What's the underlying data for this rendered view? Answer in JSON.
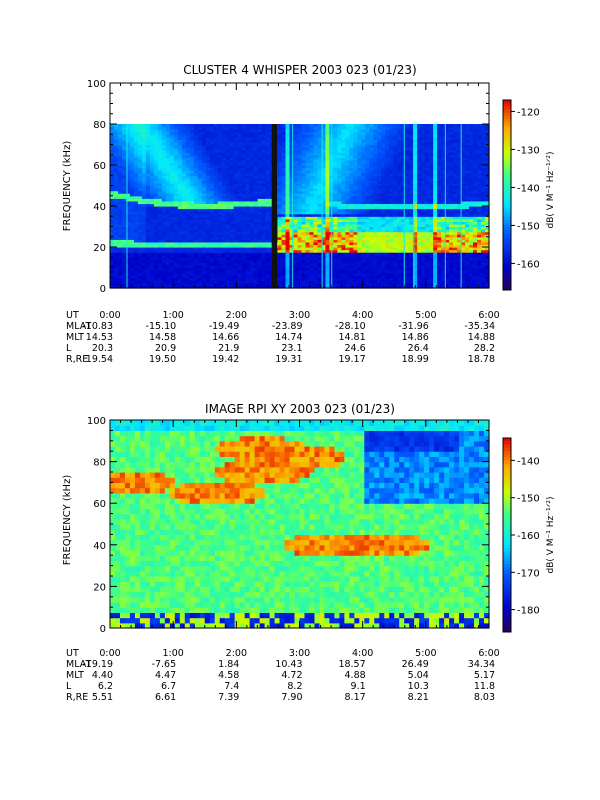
{
  "chart_data": [
    {
      "type": "heatmap",
      "title": "CLUSTER 4 WHISPER 2003 023 (01/23)",
      "ylabel": "FREQUENCY (kHz)",
      "ylim": [
        0,
        100
      ],
      "yticks": [
        "0",
        "20",
        "40",
        "60",
        "80",
        "100"
      ],
      "data_ymax": 80,
      "colorbar": {
        "label": "dB( V M⁻¹ Hz⁻¹ᐟ²)",
        "range": [
          -167,
          -117
        ],
        "ticks": [
          "-120",
          "-130",
          "-140",
          "-150",
          "-160"
        ]
      },
      "features": {
        "line1": [
          [
            0,
            46
          ],
          [
            0.5,
            43
          ],
          [
            1,
            41
          ],
          [
            1.5,
            40
          ],
          [
            2,
            41
          ],
          [
            2.5,
            42
          ]
        ],
        "line2": [
          [
            0,
            22
          ],
          [
            1,
            21
          ],
          [
            2,
            21
          ],
          [
            3,
            21
          ],
          [
            4,
            21
          ],
          [
            5,
            21
          ],
          [
            6,
            20
          ]
        ],
        "upper_line": [
          [
            3.4,
            41
          ],
          [
            4,
            40
          ],
          [
            5,
            40
          ],
          [
            6,
            41
          ]
        ]
      },
      "ephemeris": {
        "labels": [
          "UT",
          "MLAT",
          "MLT",
          "L",
          "R,RE"
        ],
        "rows": [
          [
            "0:00",
            "1:00",
            "2:00",
            "3:00",
            "4:00",
            "5:00",
            "6:00"
          ],
          [
            "-10.83",
            "-15.10",
            "-19.49",
            "-23.89",
            "-28.10",
            "-31.96",
            "-35.34"
          ],
          [
            "14.53",
            "14.58",
            "14.66",
            "14.74",
            "14.81",
            "14.86",
            "14.88"
          ],
          [
            "20.3",
            "20.9",
            "21.9",
            "23.1",
            "24.6",
            "26.4",
            "28.2"
          ],
          [
            "19.54",
            "19.50",
            "19.42",
            "19.31",
            "19.17",
            "18.99",
            "18.78"
          ]
        ]
      }
    },
    {
      "type": "heatmap",
      "title": "IMAGE RPI XY 2003 023 (01/23)",
      "ylabel": "FREQUENCY (kHz)",
      "ylim": [
        0,
        100
      ],
      "yticks": [
        "0",
        "20",
        "40",
        "60",
        "80",
        "100"
      ],
      "data_ymax": 100,
      "colorbar": {
        "label": "dB( V M⁻¹ Hz⁻¹ᐟ²)",
        "range": [
          -186,
          -134
        ],
        "ticks": [
          "-140",
          "-150",
          "-160",
          "-170",
          "-180"
        ]
      },
      "features": {
        "hot_spots": [
          [
            0.3,
            70
          ],
          [
            2.4,
            86
          ],
          [
            2.4,
            75
          ],
          [
            3,
            82
          ],
          [
            1.7,
            65
          ],
          [
            3.5,
            40
          ],
          [
            4.3,
            40
          ]
        ],
        "quiet_region": [
          [
            4.0,
            100
          ],
          [
            6.0,
            60
          ]
        ]
      },
      "ephemeris": {
        "labels": [
          "UT",
          "MLAT",
          "MLT",
          "L",
          "R,RE"
        ],
        "rows": [
          [
            "0:00",
            "1:00",
            "2:00",
            "3:00",
            "4:00",
            "5:00",
            "6:00"
          ],
          [
            "-19.19",
            "-7.65",
            "1.84",
            "10.43",
            "18.57",
            "26.49",
            "34.34"
          ],
          [
            "4.40",
            "4.47",
            "4.58",
            "4.72",
            "4.88",
            "5.04",
            "5.17"
          ],
          [
            "6.2",
            "6.7",
            "7.4",
            "8.2",
            "9.1",
            "10.3",
            "11.8"
          ],
          [
            "5.51",
            "6.61",
            "7.39",
            "7.90",
            "8.17",
            "8.21",
            "8.03"
          ]
        ]
      }
    }
  ]
}
